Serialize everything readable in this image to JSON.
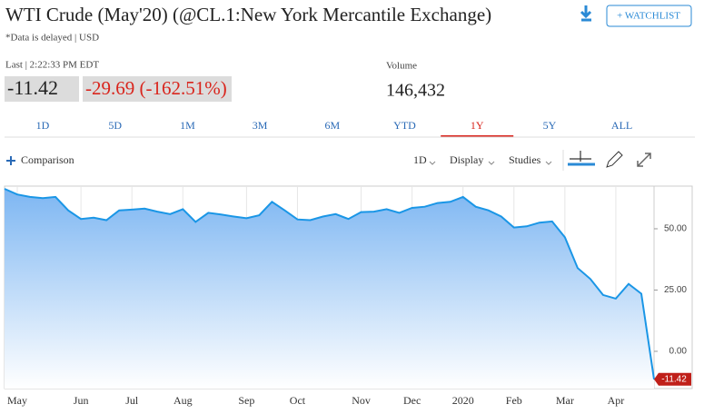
{
  "header": {
    "title": "WTI Crude (May'20) (@CL.1:New York Mercantile Exchange)",
    "note": "*Data is delayed | USD",
    "button": "+ WATCHLIST"
  },
  "quote": {
    "last_time": "Last | 2:22:33 PM EDT",
    "last": "-11.42",
    "change": "-29.69 (-162.51%)",
    "volume_label": "Volume",
    "volume": "146,432"
  },
  "tabs": {
    "items": [
      "1D",
      "5D",
      "1M",
      "3M",
      "6M",
      "YTD",
      "1Y",
      "5Y",
      "ALL"
    ],
    "active": "1Y"
  },
  "toolbar": {
    "comparison": "Comparison",
    "interval": "1D",
    "display": "Display",
    "studies": "Studies"
  },
  "chart_data": {
    "type": "area",
    "categories": [
      null,
      "May",
      null,
      null,
      null,
      null,
      "Jun",
      null,
      null,
      null,
      "Jul",
      null,
      null,
      null,
      "Aug",
      null,
      null,
      null,
      null,
      "Sep",
      null,
      null,
      null,
      "Oct",
      null,
      null,
      null,
      null,
      "Nov",
      null,
      null,
      null,
      "Dec",
      null,
      null,
      null,
      "2020",
      null,
      null,
      null,
      "Feb",
      null,
      null,
      null,
      "Mar",
      null,
      null,
      null,
      "Apr",
      null,
      null,
      null
    ],
    "series": [
      {
        "color": "#1a96e6",
        "values": [
          66.3,
          64.0,
          63.0,
          62.5,
          63.0,
          57.5,
          54.0,
          54.5,
          53.5,
          57.5,
          57.8,
          58.2,
          57.0,
          56.0,
          58.0,
          52.8,
          56.5,
          55.8,
          55.0,
          54.3,
          55.5,
          61.0,
          57.5,
          53.8,
          53.5,
          55.0,
          56.0,
          54.0,
          56.8,
          57.0,
          58.0,
          56.5,
          58.5,
          59.0,
          60.5,
          61.0,
          63.0,
          59.0,
          57.5,
          55.0,
          50.5,
          51.0,
          52.5,
          53.0,
          46.5,
          34.0,
          29.5,
          23.0,
          21.5,
          27.5,
          23.5,
          -11.42
        ]
      }
    ],
    "ylim": [
      -15.2,
      67.4
    ],
    "yticks": [
      {
        "value": 0,
        "label": "0.00"
      },
      {
        "value": 25,
        "label": "25.00"
      },
      {
        "value": 50,
        "label": "50.00"
      }
    ],
    "grid": true,
    "last_tag_color": "#c0201a"
  }
}
